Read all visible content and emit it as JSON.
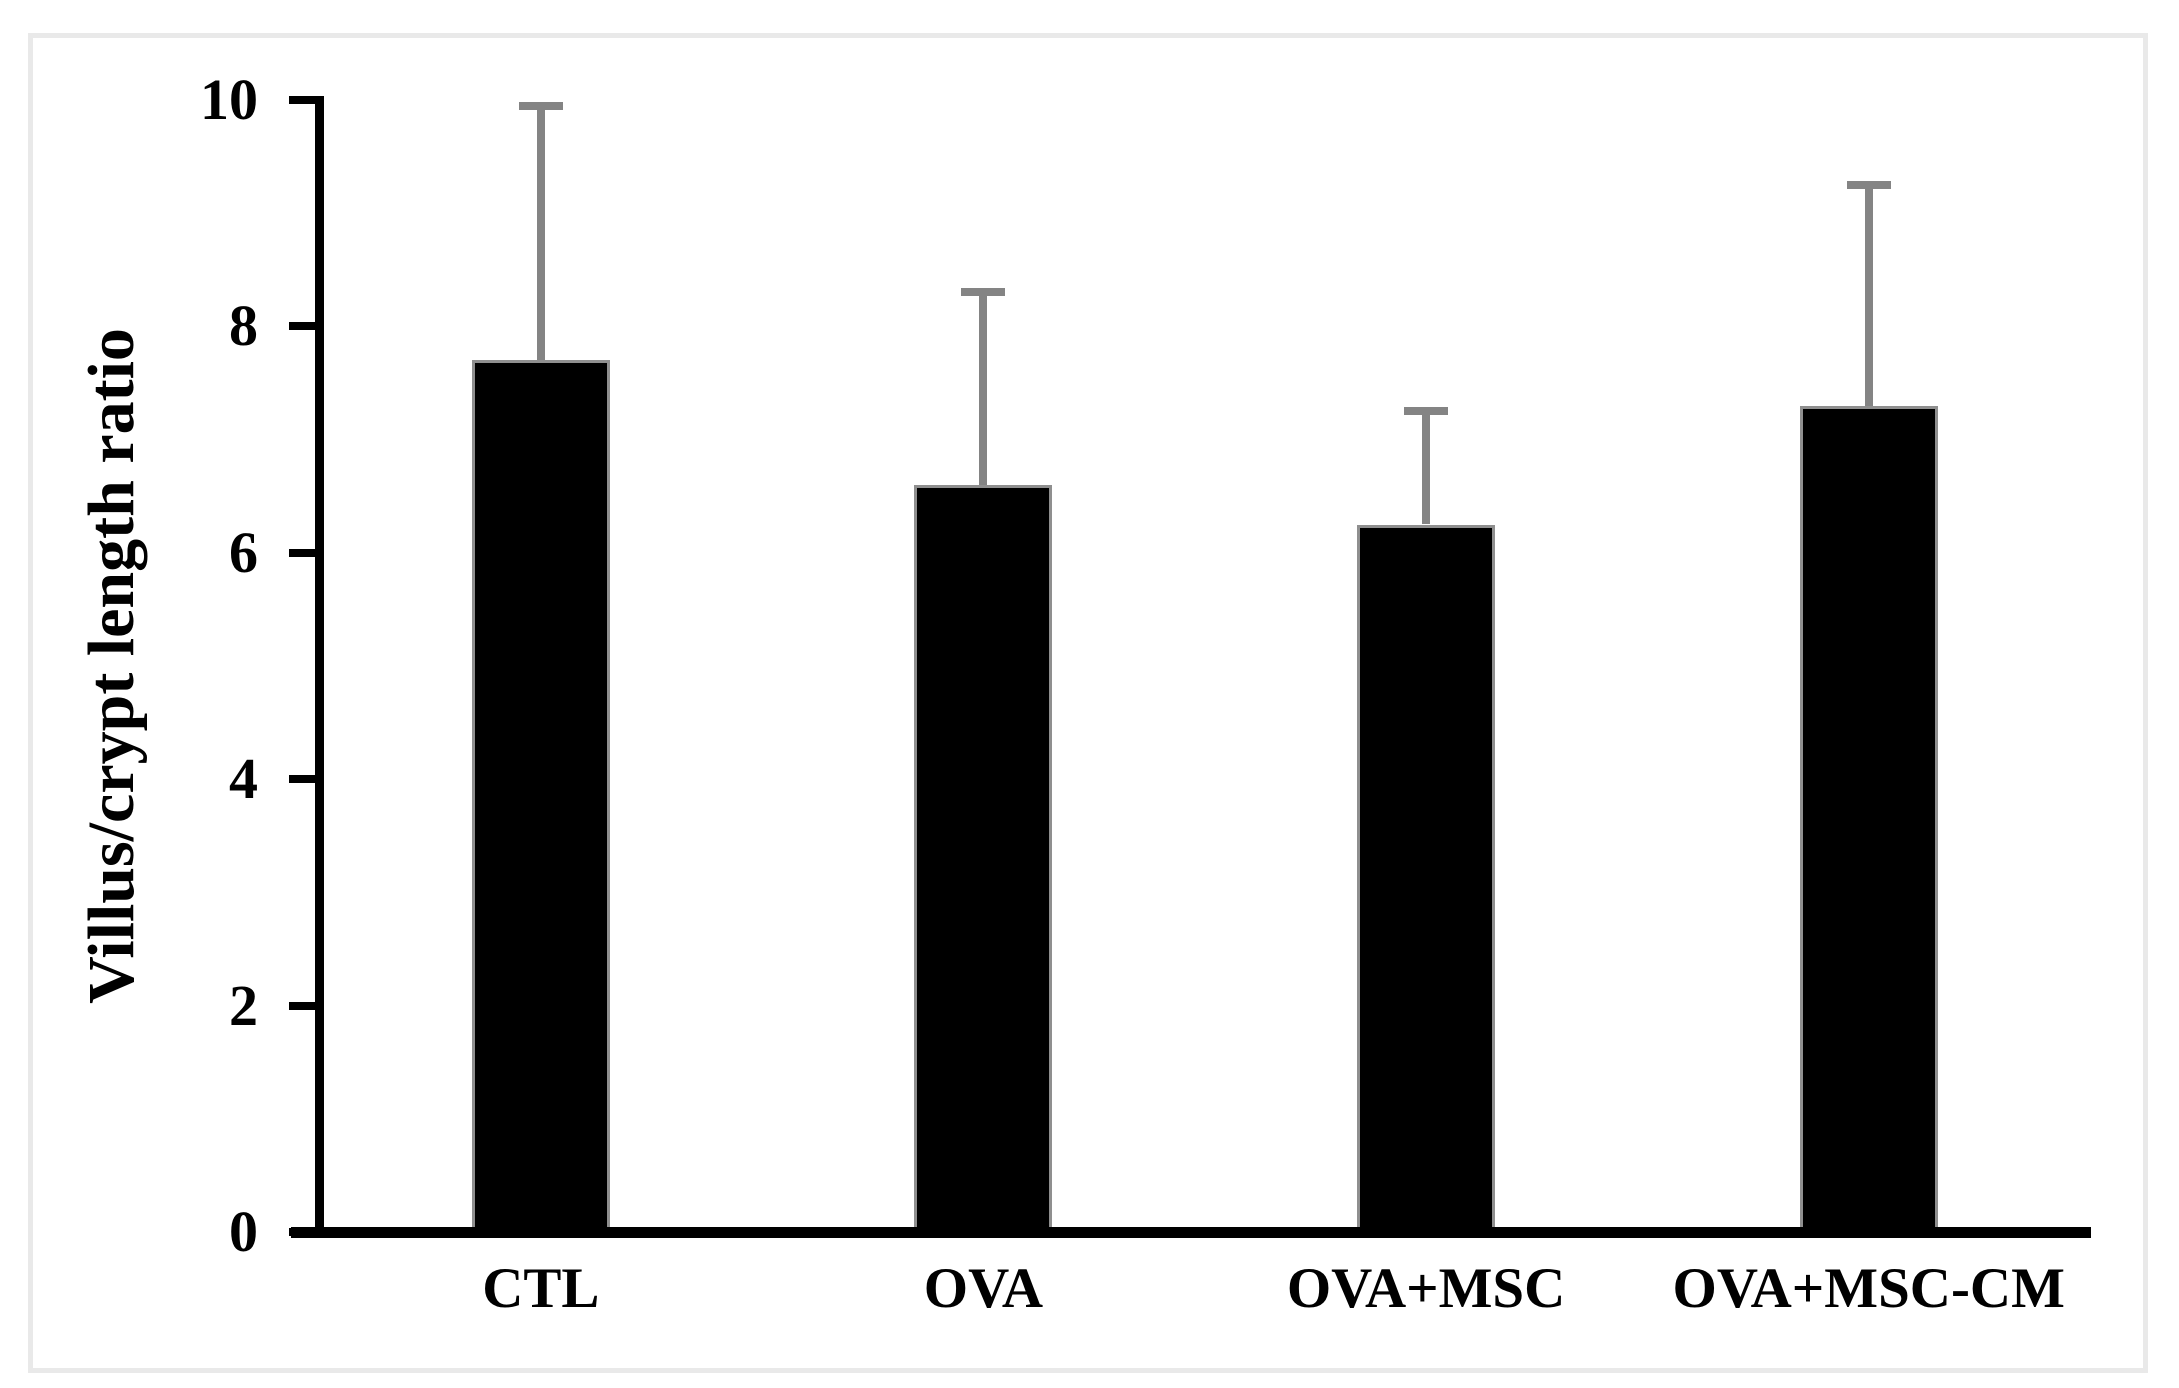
{
  "figure": {
    "background_color": "#ffffff",
    "frame_color": "#e9e9e9"
  },
  "chart_data": {
    "type": "bar",
    "title": "",
    "xlabel": "",
    "ylabel": "Villus/crypt length ratio",
    "categories": [
      "CTL",
      "OVA",
      "OVA+MSC",
      "OVA+MSC-CM"
    ],
    "values": [
      7.7,
      6.6,
      6.25,
      7.3
    ],
    "errors_plus": [
      2.25,
      1.7,
      1.0,
      1.95
    ],
    "error_tops": [
      9.95,
      8.3,
      7.25,
      9.25
    ],
    "ylim": [
      0,
      10
    ],
    "yticks": [
      0,
      2,
      4,
      6,
      8,
      10
    ],
    "grid": false,
    "legend": "none",
    "bar_color": "#000000",
    "bar_border_color": "#8f8f8f",
    "error_bar_color": "#848484",
    "axis_color": "#000000",
    "text_color": "#000000"
  }
}
